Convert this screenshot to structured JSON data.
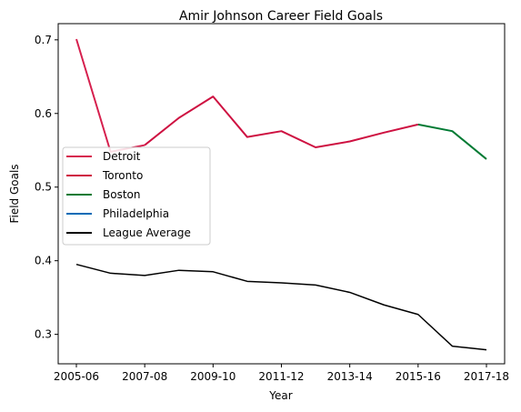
{
  "chart_data": {
    "type": "line",
    "title": "Amir Johnson Career Field Goals",
    "xlabel": "Year",
    "ylabel": "Field Goals",
    "x": [
      "2005-06",
      "2006-07",
      "2007-08",
      "2008-09",
      "2009-10",
      "2010-11",
      "2011-12",
      "2012-13",
      "2013-14",
      "2014-15",
      "2015-16",
      "2016-17",
      "2017-18"
    ],
    "xticks": [
      "2005-06",
      "2007-08",
      "2009-10",
      "2011-12",
      "2013-14",
      "2015-16",
      "2017-18"
    ],
    "yticks": [
      "0.3",
      "0.4",
      "0.5",
      "0.6",
      "0.7"
    ],
    "ylim": [
      0.26,
      0.722
    ],
    "grid": false,
    "legend_position": "center-left",
    "series": [
      {
        "name": "Detroit",
        "color": "#d6204e",
        "values": [
          0.701,
          0.548,
          0.557,
          null,
          null,
          null,
          null,
          null,
          null,
          null,
          null,
          null,
          null
        ]
      },
      {
        "name": "Toronto",
        "color": "#ce1141",
        "values": [
          null,
          null,
          0.557,
          0.594,
          0.623,
          0.568,
          0.576,
          0.554,
          0.562,
          0.574,
          0.585,
          null,
          null
        ]
      },
      {
        "name": "Boston",
        "color": "#007a33",
        "values": [
          null,
          null,
          null,
          null,
          null,
          null,
          null,
          null,
          null,
          null,
          0.585,
          0.576,
          0.538
        ]
      },
      {
        "name": "Philadelphia",
        "color": "#006bb6",
        "values": [
          null,
          null,
          null,
          null,
          null,
          null,
          null,
          null,
          null,
          null,
          null,
          null,
          null
        ]
      },
      {
        "name": "League Average",
        "color": "#000000",
        "values": [
          0.395,
          0.383,
          0.38,
          0.387,
          0.385,
          0.372,
          0.37,
          0.367,
          0.357,
          0.34,
          0.327,
          0.284,
          0.279
        ]
      }
    ]
  }
}
